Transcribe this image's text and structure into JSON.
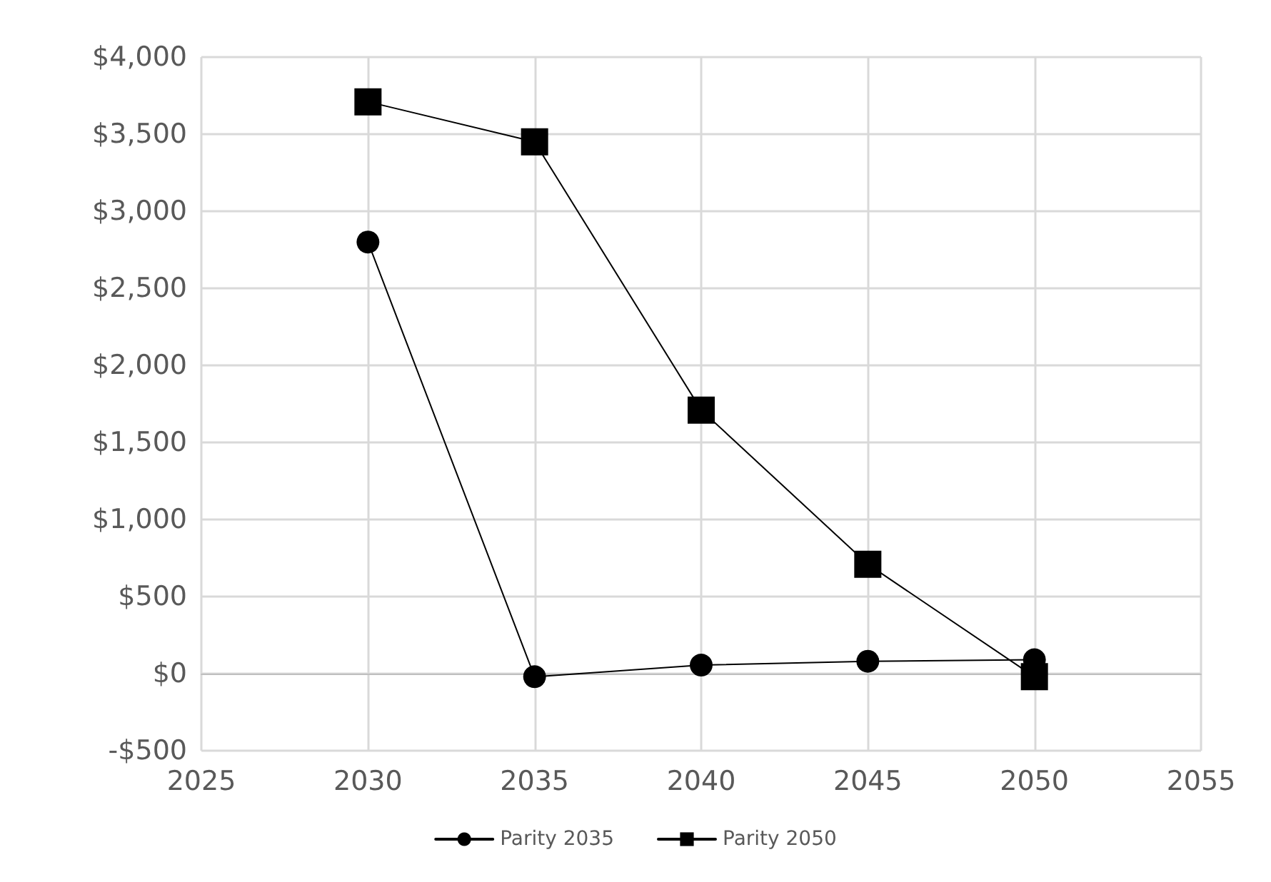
{
  "chart_data": {
    "type": "line",
    "x": [
      2030,
      2035,
      2040,
      2045,
      2050
    ],
    "series": [
      {
        "name": "Parity 2035",
        "color": "#000000",
        "marker": "circle",
        "values": [
          2800,
          -20,
          55,
          80,
          90
        ]
      },
      {
        "name": "Parity 2050",
        "color": "#000000",
        "marker": "square",
        "values": [
          3710,
          3450,
          1710,
          710,
          -20
        ]
      }
    ],
    "xlim": [
      2025,
      2055
    ],
    "xticks": [
      2025,
      2030,
      2035,
      2040,
      2045,
      2050,
      2055
    ],
    "ylim": [
      -500,
      4000
    ],
    "yticks": [
      {
        "value": -500,
        "label": "-$500"
      },
      {
        "value": 0,
        "label": "$0"
      },
      {
        "value": 500,
        "label": "$500"
      },
      {
        "value": 1000,
        "label": "$1,000"
      },
      {
        "value": 1500,
        "label": "$1,500"
      },
      {
        "value": 2000,
        "label": "$2,000"
      },
      {
        "value": 2500,
        "label": "$2,500"
      },
      {
        "value": 3000,
        "label": "$3,000"
      },
      {
        "value": 3500,
        "label": "$3,500"
      },
      {
        "value": 4000,
        "label": "$4,000"
      }
    ],
    "grid": true,
    "legend": "bottom",
    "line_style": "solid"
  }
}
